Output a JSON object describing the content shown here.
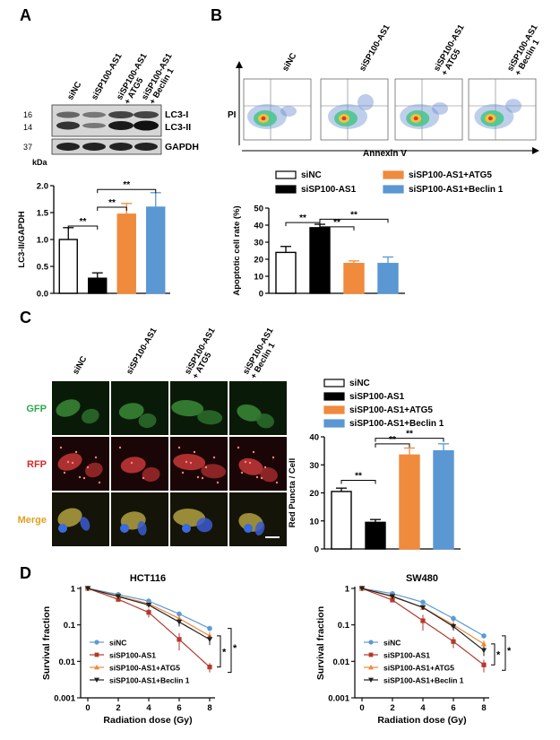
{
  "panels": {
    "A": {
      "letter": "A",
      "lanes": [
        "siNC",
        "siSP100-AS1",
        "siSP100-AS1\n+ ATG5",
        "siSP100-AS1\n+ Beclin 1"
      ],
      "mw": [
        "16",
        "14",
        "37"
      ],
      "mw_unit": "kDa",
      "bands": [
        "LC3-I",
        "LC3-II",
        "GAPDH"
      ],
      "sig": [
        "**",
        "**",
        "**"
      ]
    },
    "B": {
      "letter": "B",
      "flow_lanes": [
        "siNC",
        "siSP100-AS1",
        "siSP100-AS1\n+ ATG5",
        "siSP100-AS1\n+ Beclin 1"
      ],
      "y_axis": "PI",
      "x_axis": "Annexin V",
      "sig": [
        "**",
        "**",
        "**"
      ]
    },
    "C": {
      "letter": "C",
      "lanes": [
        "siNC",
        "siSP100-AS1",
        "siSP100-AS1\n+ ATG5",
        "siSP100-AS1\n+ Beclin 1"
      ],
      "rows": [
        "GFP",
        "RFP",
        "Merge"
      ],
      "row_colors": [
        "#2ea84a",
        "#d42a2a",
        "#e0a020"
      ],
      "sig": [
        "**",
        "**",
        "**"
      ]
    },
    "D": {
      "letter": "D"
    }
  },
  "legend4": [
    "siNC",
    "siSP100-AS1",
    "siSP100-AS1+ATG5",
    "siSP100-AS1+Beclin 1"
  ],
  "legendD": [
    "siNC",
    "siSP100-AS1",
    "siSP100-AS1+ATG5",
    "siSP100-AS1+Beclin 1"
  ],
  "colors": {
    "siNC": "#ffffff",
    "siSP100": "#000000",
    "atg5": "#f08a3c",
    "beclin": "#5a97d3",
    "d_sinc": "#5b9bd5",
    "d_sisp": "#b23a2e",
    "d_atg5": "#f0883c",
    "d_beclin": "#222222"
  },
  "chart_data": [
    {
      "id": "A",
      "type": "bar",
      "ylabel": "LC3-II/GAPDH",
      "ylim": [
        0,
        2
      ],
      "yticks": [
        "0.0",
        "0.5",
        "1.0",
        "1.5",
        "2.0"
      ],
      "categories": [
        "siNC",
        "siSP100-AS1",
        "siSP100-AS1+ATG5",
        "siSP100-AS1+Beclin 1"
      ],
      "values": [
        1.0,
        0.28,
        1.47,
        1.6
      ],
      "errors": [
        0.22,
        0.1,
        0.2,
        0.27
      ]
    },
    {
      "id": "B",
      "type": "bar",
      "ylabel": "Apoptotic cell rate (%)",
      "ylim": [
        0,
        50
      ],
      "yticks": [
        "0",
        "10",
        "20",
        "30",
        "40",
        "50"
      ],
      "categories": [
        "siNC",
        "siSP100-AS1",
        "siSP100-AS1+ATG5",
        "siSP100-AS1+Beclin 1"
      ],
      "values": [
        24,
        38.5,
        17.5,
        17.5
      ],
      "errors": [
        3.5,
        2,
        1.5,
        3.8
      ]
    },
    {
      "id": "C",
      "type": "bar",
      "ylabel": "Red Puncta / Cell",
      "ylim": [
        0,
        40
      ],
      "yticks": [
        "0",
        "10",
        "20",
        "30",
        "40"
      ],
      "categories": [
        "siNC",
        "siSP100-AS1",
        "siSP100-AS1+ATG5",
        "siSP100-AS1+Beclin 1"
      ],
      "values": [
        20.5,
        9.5,
        33.5,
        35
      ],
      "errors": [
        1.2,
        1,
        2.5,
        2.5
      ]
    },
    {
      "id": "D1",
      "type": "line",
      "title": "HCT116",
      "xlabel": "Radiation dose (Gy)",
      "ylabel": "Survival fraction",
      "yscale": "log",
      "ylim": [
        0.001,
        1
      ],
      "yticks": [
        "0.001",
        "0.01",
        "0.1",
        "1"
      ],
      "xticks": [
        "0",
        "2",
        "4",
        "6",
        "8"
      ],
      "x": [
        0,
        2,
        4,
        6,
        8
      ],
      "series": [
        {
          "name": "siNC",
          "values": [
            1,
            0.68,
            0.45,
            0.2,
            0.08
          ],
          "errors": [
            0,
            0.03,
            0.03,
            0.03,
            0.01
          ]
        },
        {
          "name": "siSP100-AS1",
          "values": [
            1,
            0.5,
            0.22,
            0.04,
            0.007
          ],
          "errors": [
            0,
            0.04,
            0.06,
            0.02,
            0.002
          ]
        },
        {
          "name": "siSP100-AS1+ATG5",
          "values": [
            1,
            0.62,
            0.38,
            0.15,
            0.05
          ],
          "errors": [
            0,
            0.04,
            0.04,
            0.03,
            0.015
          ]
        },
        {
          "name": "siSP100-AS1+Beclin 1",
          "values": [
            1,
            0.6,
            0.35,
            0.12,
            0.04
          ],
          "errors": [
            0,
            0.04,
            0.04,
            0.03,
            0.012
          ]
        }
      ],
      "sig": [
        "*",
        "*"
      ]
    },
    {
      "id": "D2",
      "type": "line",
      "title": "SW480",
      "xlabel": "Radiation dose (Gy)",
      "ylabel": "Survival fraction",
      "yscale": "log",
      "ylim": [
        0.001,
        1
      ],
      "yticks": [
        "0.001",
        "0.01",
        "0.1",
        "1"
      ],
      "xticks": [
        "0",
        "2",
        "4",
        "6",
        "8"
      ],
      "x": [
        0,
        2,
        4,
        6,
        8
      ],
      "series": [
        {
          "name": "siNC",
          "values": [
            1,
            0.72,
            0.42,
            0.15,
            0.05
          ],
          "errors": [
            0,
            0.04,
            0.04,
            0.03,
            0.008
          ]
        },
        {
          "name": "siSP100-AS1",
          "values": [
            1,
            0.48,
            0.13,
            0.035,
            0.008
          ],
          "errors": [
            0,
            0.05,
            0.06,
            0.012,
            0.003
          ]
        },
        {
          "name": "siSP100-AS1+ATG5",
          "values": [
            1,
            0.62,
            0.3,
            0.1,
            0.03
          ],
          "errors": [
            0,
            0.04,
            0.04,
            0.02,
            0.008
          ]
        },
        {
          "name": "siSP100-AS1+Beclin 1",
          "values": [
            1,
            0.6,
            0.3,
            0.09,
            0.02
          ],
          "errors": [
            0,
            0.04,
            0.04,
            0.02,
            0.006
          ]
        }
      ],
      "sig": [
        "*",
        "*"
      ]
    }
  ]
}
